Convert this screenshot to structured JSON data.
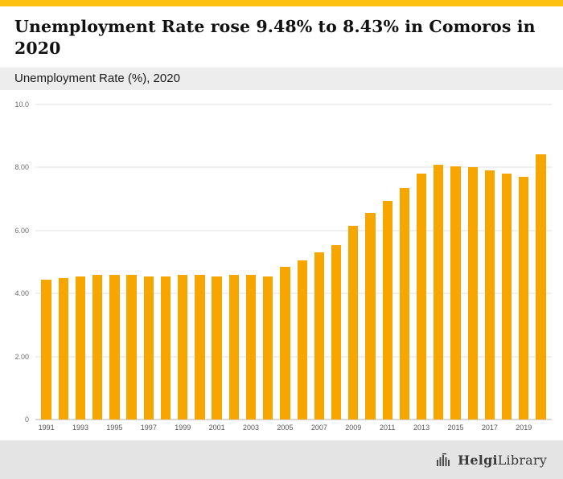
{
  "accent": {
    "top_strip_color": "#fdc112",
    "bar_color": "#f7a600"
  },
  "header": {
    "title": "Unemployment Rate rose 9.48% to 8.43% in Comoros in 2020",
    "subtitle": "Unemployment Rate (%), 2020"
  },
  "footer": {
    "logo_bold": "Helgi",
    "logo_light": "Library"
  },
  "chart_data": {
    "type": "bar",
    "title": "Unemployment Rate rose 9.48% to 8.43% in Comoros in 2020",
    "subtitle": "Unemployment Rate (%), 2020",
    "xlabel": "",
    "ylabel": "Unemployment Rate (%)",
    "x": [
      1991,
      1992,
      1993,
      1994,
      1995,
      1996,
      1997,
      1998,
      1999,
      2000,
      2001,
      2002,
      2003,
      2004,
      2005,
      2006,
      2007,
      2008,
      2009,
      2010,
      2011,
      2012,
      2013,
      2014,
      2015,
      2016,
      2017,
      2018,
      2019,
      2020
    ],
    "values": [
      4.45,
      4.5,
      4.55,
      4.6,
      4.6,
      4.6,
      4.55,
      4.55,
      4.6,
      4.6,
      4.55,
      4.6,
      4.6,
      4.55,
      4.85,
      5.05,
      5.3,
      5.55,
      6.15,
      6.55,
      6.95,
      7.35,
      7.8,
      8.1,
      8.05,
      8.0,
      7.9,
      7.8,
      7.7,
      8.43
    ],
    "bar_color": "#f7a600",
    "ylim": [
      0,
      10
    ],
    "yticks": [
      0,
      2,
      4,
      6,
      8,
      10
    ],
    "ytick_labels": [
      "0",
      "2.00",
      "4.00",
      "6.00",
      "8.00",
      "10.0"
    ],
    "labeled_years": [
      1991,
      1993,
      1995,
      1997,
      1999,
      2001,
      2003,
      2005,
      2007,
      2009,
      2011,
      2013,
      2015,
      2017,
      2019
    ],
    "grid": "horizontal",
    "legend": "none"
  }
}
